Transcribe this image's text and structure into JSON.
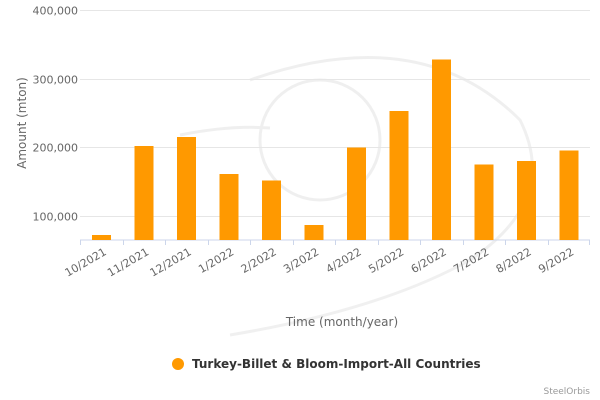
{
  "chart_data": {
    "type": "bar",
    "categories": [
      "10/2021",
      "11/2021",
      "12/2021",
      "1/2022",
      "2/2022",
      "3/2022",
      "4/2022",
      "5/2022",
      "6/2022",
      "7/2022",
      "8/2022",
      "9/2022"
    ],
    "series": [
      {
        "name": "Turkey-Billet & Bloom-Import-All Countries",
        "values": [
          72000,
          202000,
          215000,
          161000,
          152000,
          87000,
          200000,
          253000,
          328000,
          175000,
          180000,
          195000
        ],
        "color": "#ff9900"
      }
    ],
    "xlabel": "Time (month/year)",
    "ylabel": "Amount (mton)",
    "ylim": [
      65000,
      400000
    ],
    "yticks": [
      100000,
      200000,
      300000,
      400000
    ],
    "ytick_labels": [
      "100,000",
      "200,000",
      "300,000",
      "400,000"
    ],
    "grid": true,
    "legend_position": "bottom-center",
    "credit": "SteelOrbis"
  }
}
